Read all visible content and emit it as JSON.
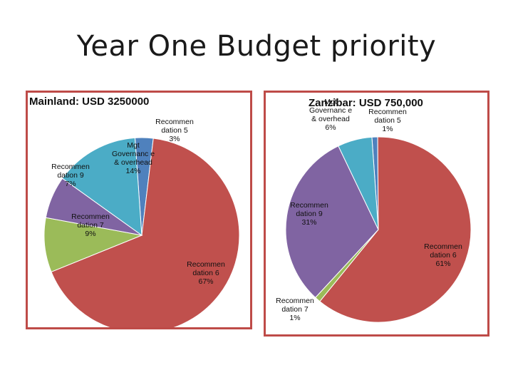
{
  "slide": {
    "title": "Year One Budget priority"
  },
  "chart_data": [
    {
      "type": "pie",
      "title": "Mainland: USD  3250000",
      "slices": [
        {
          "name": "Recommen dation 5",
          "value": 3,
          "label": "3%",
          "color": "#4f81bd"
        },
        {
          "name": "Recommen dation 6",
          "value": 67,
          "label": "67%",
          "color": "#c0504d"
        },
        {
          "name": "Recommen dation 7",
          "value": 9,
          "label": "9%",
          "color": "#9bbb59"
        },
        {
          "name": "Recommen dation 9",
          "value": 7,
          "label": "7%",
          "color": "#8064a2"
        },
        {
          "name": "Mgt Governanc e & overhead",
          "value": 14,
          "label": "14%",
          "color": "#4bacc6"
        }
      ]
    },
    {
      "type": "pie",
      "title": "Zanzibar: USD  750,000",
      "slices": [
        {
          "name": "Recommen dation 5",
          "value": 1,
          "label": "1%",
          "color": "#4f81bd"
        },
        {
          "name": "Recommen dation 6",
          "value": 61,
          "label": "61%",
          "color": "#c0504d"
        },
        {
          "name": "Recommen dation 7",
          "value": 1,
          "label": "1%",
          "color": "#9bbb59"
        },
        {
          "name": "Recommen dation 9",
          "value": 31,
          "label": "31%",
          "color": "#8064a2"
        },
        {
          "name": "Mgt Governanc e & overhead",
          "value": 6,
          "label": "6%",
          "color": "#4bacc6"
        }
      ]
    }
  ]
}
